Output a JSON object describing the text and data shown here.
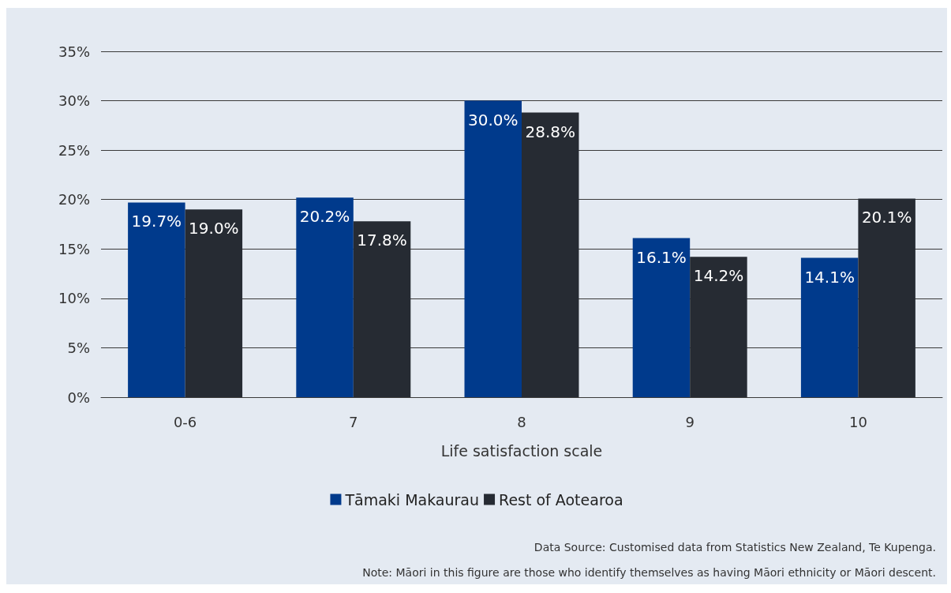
{
  "chart_data": {
    "type": "bar",
    "xlabel": "Life satisfaction scale",
    "categories": [
      "0-6",
      "7",
      "8",
      "9",
      "10"
    ],
    "series": [
      {
        "name": "Tāmaki Makaurau",
        "color": "#003a8c",
        "values": [
          19.7,
          20.2,
          30.0,
          16.1,
          14.1
        ],
        "value_labels": [
          "19.7%",
          "20.2%",
          "30.0%",
          "16.1%",
          "14.1%"
        ]
      },
      {
        "name": "Rest of Aotearoa",
        "color": "#262b33",
        "values": [
          19.0,
          17.8,
          28.8,
          14.2,
          20.1
        ],
        "value_labels": [
          "19.0%",
          "17.8%",
          "28.8%",
          "14.2%",
          "20.1%"
        ]
      }
    ],
    "ylim": [
      0,
      35
    ],
    "yticks": [
      {
        "value": 0,
        "label": "0%"
      },
      {
        "value": 5,
        "label": "5%"
      },
      {
        "value": 10,
        "label": "10%"
      },
      {
        "value": 15,
        "label": "15%"
      },
      {
        "value": 20,
        "label": "20%"
      },
      {
        "value": 25,
        "label": "25%"
      },
      {
        "value": 30,
        "label": "30%"
      },
      {
        "value": 35,
        "label": "35%"
      }
    ],
    "grid": "y",
    "legend": "bottom",
    "annotations": [
      "Data Source: Customised data from Statistics New Zealand, Te Kupenga.",
      "Note: Māori in this figure are those who identify themselves as having Māori ethnicity or Māori descent."
    ]
  }
}
